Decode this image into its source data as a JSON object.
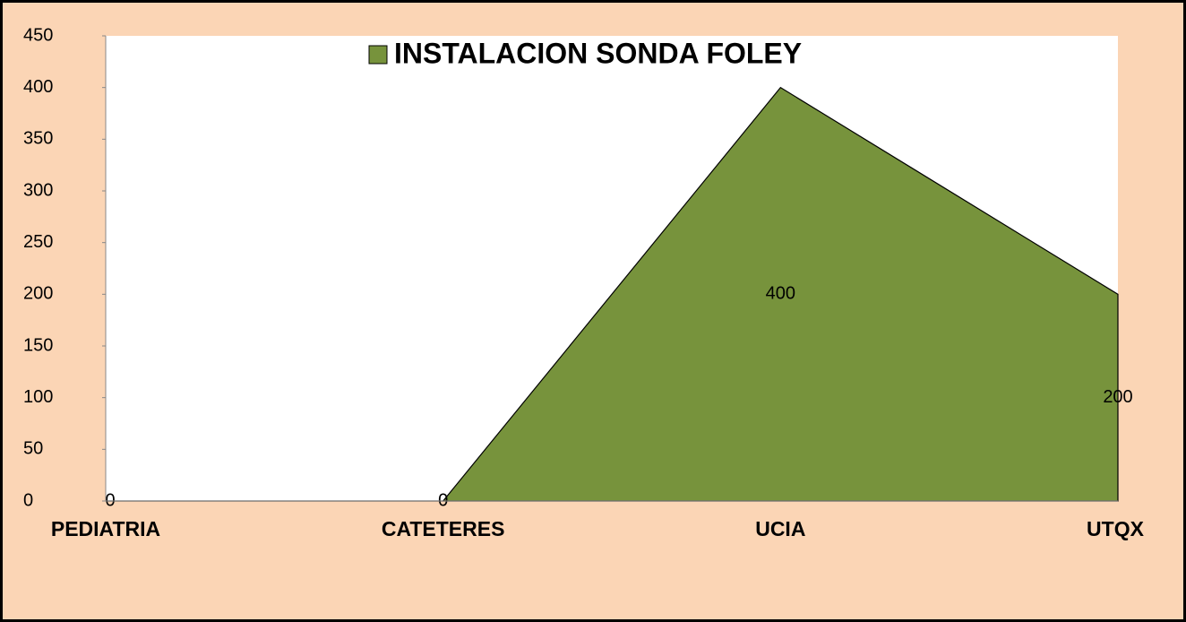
{
  "chart_data": {
    "type": "area",
    "categories": [
      "PEDIATRIA",
      "CATETERES",
      "UCIA",
      "UTQX"
    ],
    "series": [
      {
        "name": "INSTALACION SONDA FOLEY",
        "color": "#77933c",
        "values": [
          0,
          0,
          400,
          200
        ]
      }
    ],
    "ylim": [
      0,
      450
    ],
    "yticks": [
      0,
      50,
      100,
      150,
      200,
      250,
      300,
      350,
      400,
      450
    ],
    "grid": false,
    "legend": "top"
  }
}
